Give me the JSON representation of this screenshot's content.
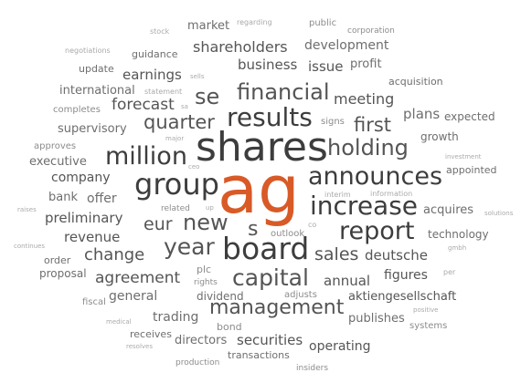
{
  "colors": {
    "accent": "#d85a27",
    "text": "#555555",
    "background": "#ffffff"
  },
  "words": [
    "ag",
    "shares",
    "board",
    "group",
    "results",
    "financial",
    "increase",
    "announces",
    "report",
    "million",
    "holding",
    "capital",
    "management",
    "year",
    "new",
    "quarter",
    "se",
    "s",
    "first",
    "sales",
    "eur",
    "change",
    "agreement",
    "preliminary",
    "revenue",
    "forecast",
    "earnings",
    "company",
    "shareholders",
    "business",
    "development",
    "meeting",
    "issue",
    "plans",
    "annual",
    "deutsche",
    "figures",
    "aktiengesellschaft",
    "securities",
    "operating",
    "directors",
    "trading",
    "dividend",
    "general",
    "publishes",
    "acquires",
    "technology",
    "supervisory",
    "international",
    "offer",
    "executive",
    "bank",
    "proposal",
    "order",
    "market",
    "guidance",
    "profit",
    "acquisition",
    "growth",
    "expected",
    "appointed",
    "update",
    "completes",
    "approves",
    "receives",
    "transactions",
    "bond",
    "plc",
    "adjusts",
    "systems",
    "fiscal",
    "production",
    "insiders",
    "rights",
    "outlook",
    "signs",
    "related",
    "public",
    "corporation",
    "stock",
    "regarding",
    "negotiations",
    "sells",
    "statement",
    "major",
    "ceo",
    "interim",
    "information",
    "co",
    "up",
    "raises",
    "continues",
    "gmbh",
    "per",
    "positive",
    "medical",
    "resolves",
    "investment",
    "solutions",
    "sa"
  ]
}
